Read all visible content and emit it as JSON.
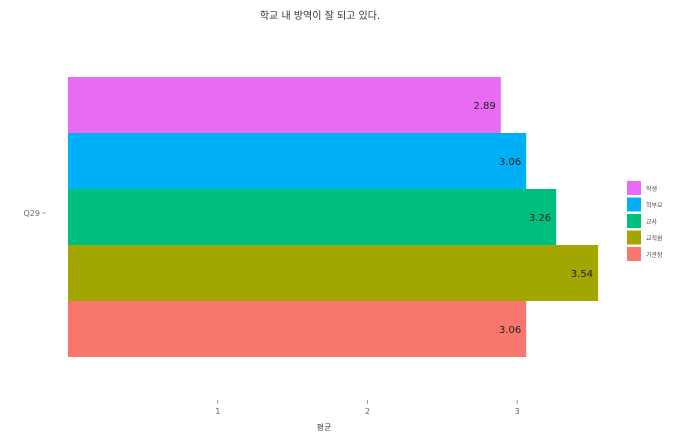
{
  "chart_data": {
    "type": "bar",
    "orientation": "horizontal",
    "title": "학교 내 방역이 잘 되고 있다.",
    "xlabel": "평균",
    "ylabel": "",
    "y_category": "Q29",
    "xlim": [
      0,
      3.9
    ],
    "x_ticks": [
      "1",
      "2",
      "3"
    ],
    "grid": false,
    "legend_position": "right",
    "series": [
      {
        "name": "학생",
        "value": 2.89,
        "label": "2.89",
        "color": "#E76BF3"
      },
      {
        "name": "학부모",
        "value": 3.06,
        "label": "3.06",
        "color": "#00B0F6"
      },
      {
        "name": "교사",
        "value": 3.26,
        "label": "3.26",
        "color": "#00BF7D"
      },
      {
        "name": "교직원",
        "value": 3.54,
        "label": "3.54",
        "color": "#A3A500"
      },
      {
        "name": "기관장",
        "value": 3.06,
        "label": "3.06",
        "color": "#F8766D"
      }
    ]
  }
}
